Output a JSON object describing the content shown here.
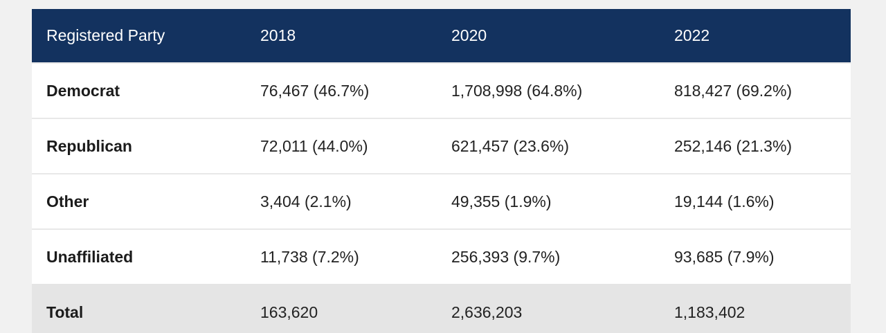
{
  "table": {
    "headers": [
      "Registered Party",
      "2018",
      "2020",
      "2022"
    ],
    "rows": [
      [
        "Democrat",
        "76,467 (46.7%)",
        "1,708,998 (64.8%)",
        "818,427 (69.2%)"
      ],
      [
        "Republican",
        "72,011 (44.0%)",
        "621,457 (23.6%)",
        "252,146 (21.3%)"
      ],
      [
        "Other",
        "3,404 (2.1%)",
        "49,355 (1.9%)",
        "19,144 (1.6%)"
      ],
      [
        "Unaffiliated",
        "11,738 (7.2%)",
        "256,393 (9.7%)",
        "93,685 (7.9%)"
      ]
    ],
    "total": [
      "Total",
      "163,620",
      "2,636,203",
      "1,183,402"
    ]
  },
  "colors": {
    "header_bg": "#13325f",
    "header_text": "#ffffff",
    "total_bg": "#e5e5e5",
    "page_bg": "#f1f1f1"
  }
}
